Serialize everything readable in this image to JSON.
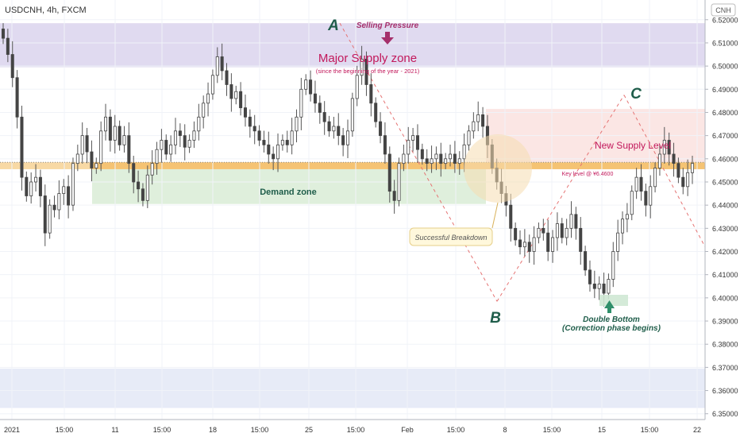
{
  "header": {
    "symbol_label": "USDCNH, 4h, FXCM"
  },
  "price_badge": {
    "label": "CNH"
  },
  "chart_data": {
    "type": "candlestick",
    "title": "USDCNH, 4h, FXCM",
    "ylim": [
      6.3475,
      6.5285
    ],
    "yticks": [
      6.35,
      6.36,
      6.37,
      6.38,
      6.39,
      6.4,
      6.41,
      6.42,
      6.43,
      6.44,
      6.45,
      6.46,
      6.47,
      6.48,
      6.49,
      6.5,
      6.51,
      6.52
    ],
    "x_tick_labels": [
      "2021",
      "15:00",
      "11",
      "15:00",
      "18",
      "15:00",
      "25",
      "15:00",
      "Feb",
      "15:00",
      "8",
      "15:00",
      "15",
      "15:00",
      "22"
    ],
    "last_price_line": 6.4585,
    "close_series": [
      6.512,
      6.505,
      6.495,
      6.478,
      6.452,
      6.444,
      6.45,
      6.452,
      6.444,
      6.428,
      6.44,
      6.438,
      6.445,
      6.448,
      6.44,
      6.458,
      6.462,
      6.47,
      6.463,
      6.456,
      6.458,
      6.472,
      6.478,
      6.468,
      6.474,
      6.466,
      6.47,
      6.458,
      6.45,
      6.447,
      6.442,
      6.453,
      6.458,
      6.464,
      6.468,
      6.462,
      6.466,
      6.472,
      6.47,
      6.465,
      6.468,
      6.472,
      6.478,
      6.484,
      6.488,
      6.496,
      6.504,
      6.498,
      6.492,
      6.486,
      6.489,
      6.482,
      6.478,
      6.474,
      6.472,
      6.468,
      6.466,
      6.462,
      6.46,
      6.466,
      6.468,
      6.466,
      6.472,
      6.478,
      6.49,
      6.494,
      6.488,
      6.484,
      6.48,
      6.476,
      6.472,
      6.474,
      6.47,
      6.466,
      6.472,
      6.486,
      6.496,
      6.503,
      6.492,
      6.484,
      6.476,
      6.47,
      6.462,
      6.446,
      6.442,
      6.458,
      6.462,
      6.468,
      6.47,
      6.464,
      6.46,
      6.458,
      6.46,
      6.462,
      6.458,
      6.46,
      6.462,
      6.458,
      6.46,
      6.466,
      6.472,
      6.476,
      6.479,
      6.474,
      6.466,
      6.456,
      6.45,
      6.445,
      6.44,
      6.43,
      6.425,
      6.422,
      6.424,
      6.42,
      6.426,
      6.43,
      6.428,
      6.42,
      6.426,
      6.432,
      6.426,
      6.43,
      6.436,
      6.43,
      6.42,
      6.412,
      6.406,
      6.404,
      6.406,
      6.402,
      6.408,
      6.42,
      6.428,
      6.434,
      6.436,
      6.446,
      6.452,
      6.446,
      6.44,
      6.448,
      6.456,
      6.462,
      6.468,
      6.462,
      6.458,
      6.452,
      6.448,
      6.454,
      6.458
    ],
    "zones": [
      {
        "name": "Major Supply zone",
        "from": 6.4995,
        "to": 6.5185,
        "color": "#ddd6ee"
      },
      {
        "name": "Demand zone",
        "from": 6.4405,
        "to": 6.4555,
        "color": "#dcedd8"
      },
      {
        "name": "Key level",
        "from": 6.4555,
        "to": 6.4585,
        "color": "#f3b95a"
      },
      {
        "name": "New Supply Level",
        "from": 6.4585,
        "to": 6.4815,
        "color": "#fbe3e1"
      },
      {
        "name": "Lower band",
        "from": 6.3525,
        "to": 6.3695,
        "color": "#e4e9f6"
      }
    ],
    "pattern_points": [
      {
        "label": "A",
        "price": 6.5185
      },
      {
        "label": "B",
        "price": 6.3985
      },
      {
        "label": "C",
        "price": 6.4875
      }
    ],
    "grid": true
  },
  "annotations": {
    "major_supply": "Major Supply zone",
    "major_supply_sub": "(since the beginning of the year - 2021)",
    "selling_pressure": "Selling Pressure",
    "demand_zone": "Demand zone",
    "key_level": "Key level @ Ұ6.4600",
    "new_supply": "New Supply Level",
    "breakdown": "Successful Breakdown",
    "double_bottom_1": "Double Bottom",
    "double_bottom_2": "(Correction phase begins)",
    "label_a": "A",
    "label_b": "B",
    "label_c": "C"
  },
  "colors": {
    "candle_up": "#ffffff",
    "candle_down": "#444444",
    "wick": "#555555",
    "supply_text": "#c2185b",
    "demand_text": "#1f5d4a",
    "abc_text": "#1f5d4a",
    "arrow_pink": "#a5306b",
    "arrow_green": "#2f8f6a"
  }
}
